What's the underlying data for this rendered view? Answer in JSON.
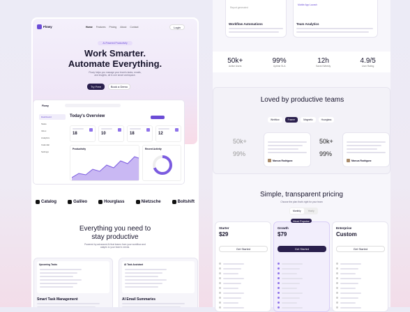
{
  "left": {
    "nav": {
      "logo": "Flowy",
      "links": [
        "Home",
        "Features",
        "Pricing",
        "About",
        "Contact"
      ],
      "login": "Login"
    },
    "hero": {
      "badge": "AI-Powered Productivity",
      "title": [
        "Work Smarter.",
        "Automate Everything."
      ],
      "subtitle": "Flowy helps you manage your team's tasks, emails, and insights, all in one smart workspace.",
      "primary": "Try Free",
      "secondary": "Book a Demo"
    },
    "dashboard": {
      "logo": "Flowy",
      "title": "Today's Overview",
      "sidebar": [
        "Dashboard",
        "Tasks",
        "Inbox",
        "Analytics",
        "Calendar",
        "Settings"
      ],
      "stats": [
        "18",
        "10",
        "18",
        "12"
      ],
      "chart": "Productivity",
      "activity": "Recent Activity"
    },
    "logos": [
      "Catalog",
      "Galileo",
      "Hourglass",
      "Nietzsche",
      "Boltshift"
    ],
    "features": {
      "title": [
        "Everything you need to",
        "stay productive"
      ],
      "subtitle": "Powered by advanced AI that learns from your workflow and adapts to your team's needs.",
      "cards": [
        {
          "title": "Smart Task Management",
          "panel": "Upcoming Tasks"
        },
        {
          "title": "AI Email Summaries",
          "panel": "AI Task Assistant"
        }
      ]
    }
  },
  "right": {
    "features": [
      {
        "title": "Workflow Automations",
        "note": "Report generated"
      },
      {
        "title": "Team Analytics",
        "note": "Mobile App Launch"
      }
    ],
    "stats": [
      {
        "value": "50k+",
        "label": "Active Users"
      },
      {
        "value": "99%",
        "label": "Uptime SLA"
      },
      {
        "value": "12h",
        "label": "Saved Weekly"
      },
      {
        "value": "4.9/5",
        "label": "User Rating"
      }
    ],
    "testimonials": {
      "title": "Loved by productive teams",
      "tabs": [
        "Webflow",
        "Framer",
        "Magnetic",
        "Hourglass"
      ],
      "stats": [
        "50k+",
        "99%"
      ],
      "names": [
        "Marcus Rodriguez",
        "Marcus Rodriguez"
      ]
    },
    "pricing": {
      "title": "Simple, transparent pricing",
      "subtitle": "Choose the plan that's right for your team",
      "toggle": [
        "Monthly",
        "Yearly"
      ],
      "plans": [
        {
          "name": "Starter",
          "price": "$29",
          "cta": "Get Started"
        },
        {
          "name": "Growth",
          "price": "$79",
          "cta": "Get Started",
          "badge": "Most Popular"
        },
        {
          "name": "Enterprise",
          "price": "Custom",
          "cta": "Get Started"
        }
      ]
    }
  }
}
